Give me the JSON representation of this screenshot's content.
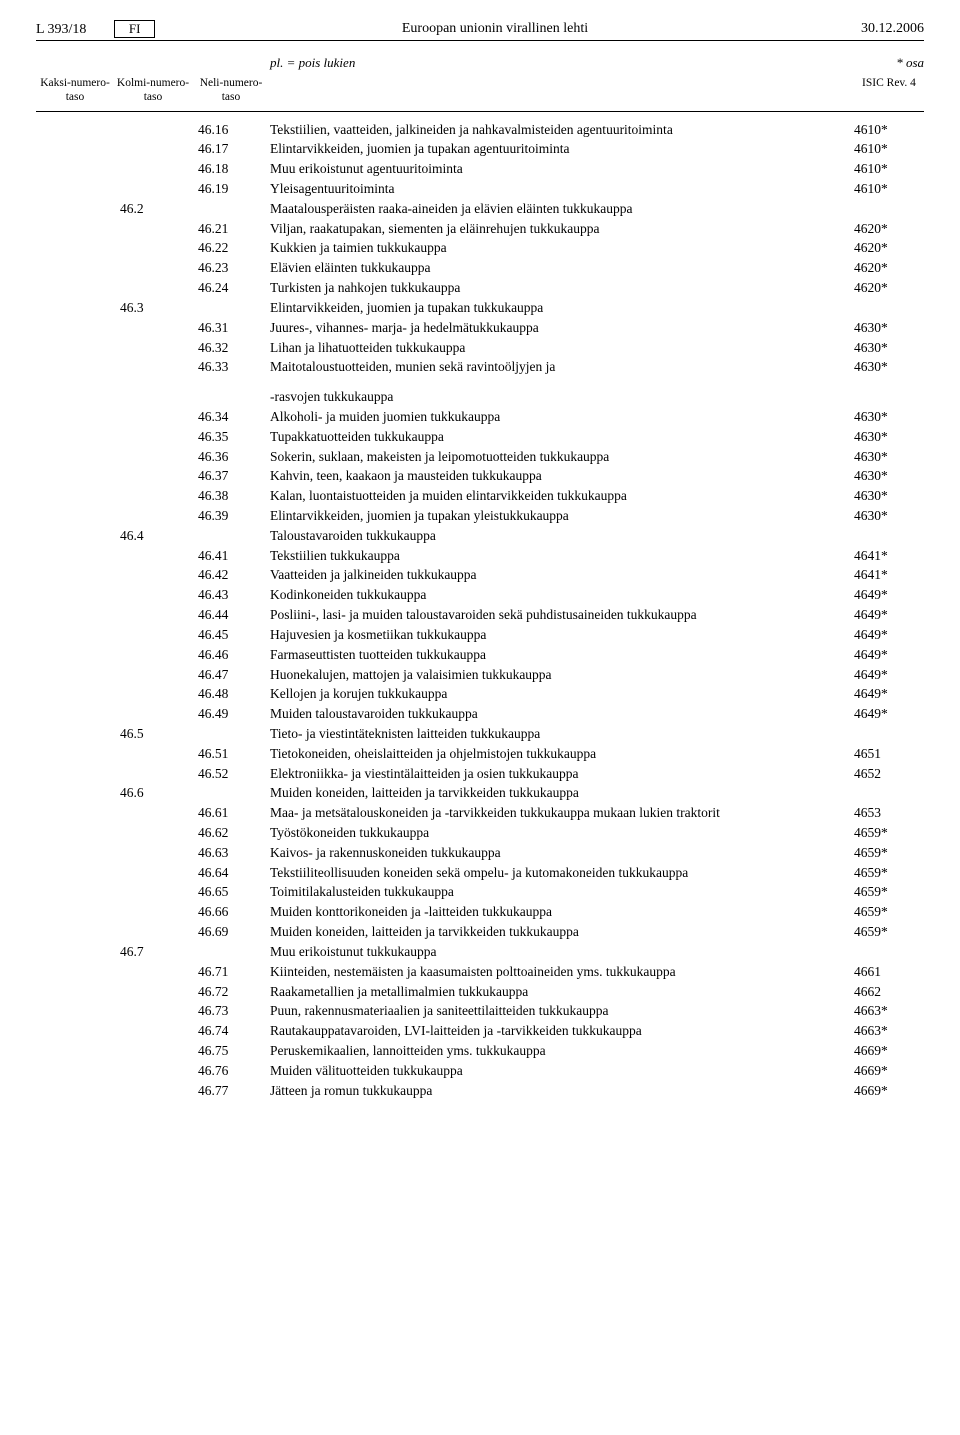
{
  "header": {
    "left": "L 393/18",
    "lang": "FI",
    "center": "Euroopan unionin virallinen lehti",
    "right": "30.12.2006"
  },
  "legend": {
    "pl": "pl. = pois lukien",
    "osa": "* osa"
  },
  "columnHeaders": {
    "level1": "Kaksi-numero-taso",
    "level2": "Kolmi-numero-taso",
    "level3": "Neli-numero-taso",
    "isic": "ISIC Rev. 4"
  },
  "rows": [
    {
      "l1": "",
      "l2": "",
      "l3": "46.16",
      "desc": "Tekstiilien, vaatteiden, jalkineiden ja nahkavalmisteiden agentuuritoiminta",
      "isic": "4610*"
    },
    {
      "l1": "",
      "l2": "",
      "l3": "46.17",
      "desc": "Elintarvikkeiden, juomien ja tupakan agentuuritoiminta",
      "isic": "4610*"
    },
    {
      "l1": "",
      "l2": "",
      "l3": "46.18",
      "desc": "Muu erikoistunut agentuuritoiminta",
      "isic": "4610*"
    },
    {
      "l1": "",
      "l2": "",
      "l3": "46.19",
      "desc": "Yleisagentuuritoiminta",
      "isic": "4610*"
    },
    {
      "l1": "",
      "l2": "46.2",
      "l3": "",
      "desc": "Maatalousperäisten raaka-aineiden ja elävien eläinten tukkukauppa",
      "isic": ""
    },
    {
      "l1": "",
      "l2": "",
      "l3": "46.21",
      "desc": "Viljan, raakatupakan, siementen ja eläinrehujen tukkukauppa",
      "isic": "4620*"
    },
    {
      "l1": "",
      "l2": "",
      "l3": "46.22",
      "desc": "Kukkien ja taimien tukkukauppa",
      "isic": "4620*"
    },
    {
      "l1": "",
      "l2": "",
      "l3": "46.23",
      "desc": "Elävien eläinten tukkukauppa",
      "isic": "4620*"
    },
    {
      "l1": "",
      "l2": "",
      "l3": "46.24",
      "desc": "Turkisten ja nahkojen tukkukauppa",
      "isic": "4620*"
    },
    {
      "l1": "",
      "l2": "46.3",
      "l3": "",
      "desc": "Elintarvikkeiden, juomien ja tupakan tukkukauppa",
      "isic": ""
    },
    {
      "l1": "",
      "l2": "",
      "l3": "46.31",
      "desc": "Juures-, vihannes- marja- ja hedelmätukkukauppa",
      "isic": "4630*"
    },
    {
      "l1": "",
      "l2": "",
      "l3": "46.32",
      "desc": "Lihan ja lihatuotteiden tukkukauppa",
      "isic": "4630*"
    },
    {
      "l1": "",
      "l2": "",
      "l3": "46.33",
      "desc": "Maitotaloustuotteiden, munien sekä ravintoöljyjen ja",
      "isic": "4630*"
    },
    {
      "spacer": true
    },
    {
      "l1": "",
      "l2": "",
      "l3": "",
      "desc": "-rasvojen tukkukauppa",
      "isic": ""
    },
    {
      "l1": "",
      "l2": "",
      "l3": "46.34",
      "desc": "Alkoholi- ja muiden juomien tukkukauppa",
      "isic": "4630*"
    },
    {
      "l1": "",
      "l2": "",
      "l3": "46.35",
      "desc": "Tupakkatuotteiden tukkukauppa",
      "isic": "4630*"
    },
    {
      "l1": "",
      "l2": "",
      "l3": "46.36",
      "desc": "Sokerin, suklaan, makeisten ja leipomotuotteiden tukkukauppa",
      "isic": "4630*"
    },
    {
      "l1": "",
      "l2": "",
      "l3": "46.37",
      "desc": "Kahvin, teen, kaakaon ja mausteiden tukkukauppa",
      "isic": "4630*"
    },
    {
      "l1": "",
      "l2": "",
      "l3": "46.38",
      "desc": "Kalan, luontaistuotteiden ja muiden elintarvikkeiden tukkukauppa",
      "isic": "4630*"
    },
    {
      "l1": "",
      "l2": "",
      "l3": "46.39",
      "desc": "Elintarvikkeiden, juomien ja tupakan yleistukkukauppa",
      "isic": "4630*"
    },
    {
      "l1": "",
      "l2": "46.4",
      "l3": "",
      "desc": "Taloustavaroiden tukkukauppa",
      "isic": ""
    },
    {
      "l1": "",
      "l2": "",
      "l3": "46.41",
      "desc": "Tekstiilien tukkukauppa",
      "isic": "4641*"
    },
    {
      "l1": "",
      "l2": "",
      "l3": "46.42",
      "desc": "Vaatteiden ja jalkineiden tukkukauppa",
      "isic": "4641*"
    },
    {
      "l1": "",
      "l2": "",
      "l3": "46.43",
      "desc": "Kodinkoneiden tukkukauppa",
      "isic": "4649*"
    },
    {
      "l1": "",
      "l2": "",
      "l3": "46.44",
      "desc": "Posliini-, lasi- ja muiden taloustavaroiden sekä puhdistusaineiden tukkukauppa",
      "isic": "4649*"
    },
    {
      "l1": "",
      "l2": "",
      "l3": "46.45",
      "desc": "Hajuvesien ja kosmetiikan tukkukauppa",
      "isic": "4649*"
    },
    {
      "l1": "",
      "l2": "",
      "l3": "46.46",
      "desc": "Farmaseuttisten tuotteiden tukkukauppa",
      "isic": "4649*"
    },
    {
      "l1": "",
      "l2": "",
      "l3": "46.47",
      "desc": "Huonekalujen, mattojen ja valaisimien tukkukauppa",
      "isic": "4649*"
    },
    {
      "l1": "",
      "l2": "",
      "l3": "46.48",
      "desc": "Kellojen ja korujen tukkukauppa",
      "isic": "4649*"
    },
    {
      "l1": "",
      "l2": "",
      "l3": "46.49",
      "desc": "Muiden taloustavaroiden tukkukauppa",
      "isic": "4649*"
    },
    {
      "l1": "",
      "l2": "46.5",
      "l3": "",
      "desc": "Tieto- ja viestintäteknisten laitteiden tukkukauppa",
      "isic": ""
    },
    {
      "l1": "",
      "l2": "",
      "l3": "46.51",
      "desc": "Tietokoneiden, oheislaitteiden ja ohjelmistojen tukkukauppa",
      "isic": "4651"
    },
    {
      "l1": "",
      "l2": "",
      "l3": "46.52",
      "desc": "Elektroniikka- ja viestintälaitteiden ja osien tukkukauppa",
      "isic": "4652"
    },
    {
      "l1": "",
      "l2": "46.6",
      "l3": "",
      "desc": "Muiden koneiden, laitteiden ja tarvikkeiden tukkukauppa",
      "isic": ""
    },
    {
      "l1": "",
      "l2": "",
      "l3": "46.61",
      "desc": "Maa- ja metsätalouskoneiden ja -tarvikkeiden tukkukauppa mukaan lukien traktorit",
      "isic": "4653"
    },
    {
      "l1": "",
      "l2": "",
      "l3": "46.62",
      "desc": "Työstökoneiden tukkukauppa",
      "isic": "4659*"
    },
    {
      "l1": "",
      "l2": "",
      "l3": "46.63",
      "desc": "Kaivos- ja rakennuskoneiden tukkukauppa",
      "isic": "4659*"
    },
    {
      "l1": "",
      "l2": "",
      "l3": "46.64",
      "desc": "Tekstiiliteollisuuden koneiden sekä ompelu- ja kutomakoneiden tukkukauppa",
      "isic": "4659*"
    },
    {
      "l1": "",
      "l2": "",
      "l3": "46.65",
      "desc": "Toimitilakalusteiden tukkukauppa",
      "isic": "4659*"
    },
    {
      "l1": "",
      "l2": "",
      "l3": "46.66",
      "desc": "Muiden konttorikoneiden ja -laitteiden tukkukauppa",
      "isic": "4659*"
    },
    {
      "l1": "",
      "l2": "",
      "l3": "46.69",
      "desc": "Muiden koneiden, laitteiden ja tarvikkeiden tukkukauppa",
      "isic": "4659*"
    },
    {
      "l1": "",
      "l2": "46.7",
      "l3": "",
      "desc": "Muu erikoistunut tukkukauppa",
      "isic": ""
    },
    {
      "l1": "",
      "l2": "",
      "l3": "46.71",
      "desc": "Kiinteiden, nestemäisten ja kaasumaisten polttoaineiden yms. tukkukauppa",
      "isic": "4661"
    },
    {
      "l1": "",
      "l2": "",
      "l3": "46.72",
      "desc": "Raakametallien ja metallimalmien tukkukauppa",
      "isic": "4662"
    },
    {
      "l1": "",
      "l2": "",
      "l3": "46.73",
      "desc": "Puun, rakennusmateriaalien ja saniteettilaitteiden tukkukauppa",
      "isic": "4663*"
    },
    {
      "l1": "",
      "l2": "",
      "l3": "46.74",
      "desc": "Rautakauppatavaroiden, LVI-laitteiden ja -tarvikkeiden tukkukauppa",
      "isic": "4663*"
    },
    {
      "l1": "",
      "l2": "",
      "l3": "46.75",
      "desc": "Peruskemikaalien, lannoitteiden yms. tukkukauppa",
      "isic": "4669*"
    },
    {
      "l1": "",
      "l2": "",
      "l3": "46.76",
      "desc": "Muiden välituotteiden tukkukauppa",
      "isic": "4669*"
    },
    {
      "l1": "",
      "l2": "",
      "l3": "46.77",
      "desc": "Jätteen ja romun tukkukauppa",
      "isic": "4669*"
    }
  ]
}
